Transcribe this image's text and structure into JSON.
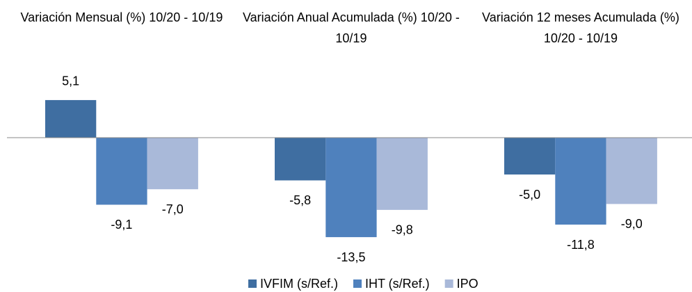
{
  "chart_data": {
    "type": "bar",
    "categories": [
      "Variación Mensual (%) 10/20 - 10/19",
      "Variación Anual Acumulada (%) 10/20 - 10/19",
      "Variación 12 meses Acumulada (%) 10/20 - 10/19"
    ],
    "series": [
      {
        "name": "IVFIM (s/Ref.)",
        "color": "#3f6ea1",
        "values": [
          5.1,
          -5.8,
          -5.0
        ],
        "value_labels": [
          "5,1",
          "-5,8",
          "-5,0"
        ]
      },
      {
        "name": "IHT (s/Ref.)",
        "color": "#4f81bd",
        "values": [
          -9.1,
          -13.5,
          -11.8
        ],
        "value_labels": [
          "-9,1",
          "-13,5",
          "-11,8"
        ]
      },
      {
        "name": "IPO",
        "color": "#a9b9d9",
        "values": [
          -7.0,
          -9.8,
          -9.0
        ],
        "value_labels": [
          "-7,0",
          "-9,8",
          "-9,0"
        ]
      }
    ],
    "legend": "bottom"
  }
}
